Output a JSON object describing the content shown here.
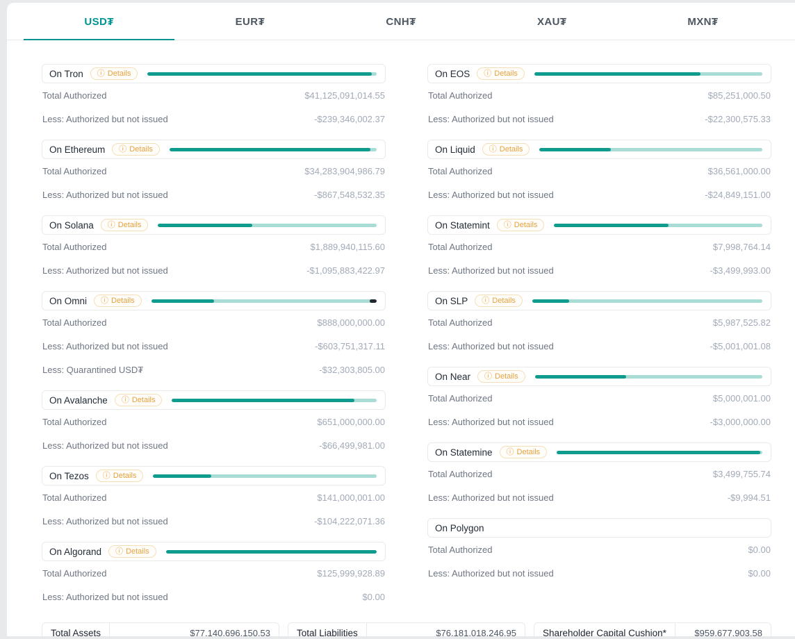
{
  "ui": {
    "details_label": "Details",
    "info_icon": "ⓘ"
  },
  "colors": {
    "accent_teal": "#009393",
    "bar_fill": "#0f9b8e",
    "bar_track": "#a9dcd5",
    "bar_quarantine": "#23272f",
    "details_badge": "#e5a13d"
  },
  "tabs": [
    {
      "label": "USD₮",
      "active": true
    },
    {
      "label": "EUR₮",
      "active": false
    },
    {
      "label": "CNH₮",
      "active": false
    },
    {
      "label": "XAU₮",
      "active": false
    },
    {
      "label": "MXN₮",
      "active": false
    }
  ],
  "columns": {
    "left": [
      {
        "name": "On Tron",
        "has_details": true,
        "bar_pct": 98,
        "rows": [
          {
            "label": "Total Authorized",
            "value": "$41,125,091,014.55"
          },
          {
            "label": "Less: Authorized but not issued",
            "value": "-$239,346,002.37"
          }
        ]
      },
      {
        "name": "On Ethereum",
        "has_details": true,
        "bar_pct": 97,
        "rows": [
          {
            "label": "Total Authorized",
            "value": "$34,283,904,986.79"
          },
          {
            "label": "Less: Authorized but not issued",
            "value": "-$867,548,532.35"
          }
        ]
      },
      {
        "name": "On Solana",
        "has_details": true,
        "bar_pct": 43,
        "rows": [
          {
            "label": "Total Authorized",
            "value": "$1,889,940,115.60"
          },
          {
            "label": "Less: Authorized but not issued",
            "value": "-$1,095,883,422.97"
          }
        ]
      },
      {
        "name": "On Omni",
        "has_details": true,
        "bar_pct": 28,
        "quarantine_pct": 3,
        "rows": [
          {
            "label": "Total Authorized",
            "value": "$888,000,000.00"
          },
          {
            "label": "Less: Authorized but not issued",
            "value": "-$603,751,317.11"
          },
          {
            "label": "Less: Quarantined USD₮",
            "value": "-$32,303,805.00"
          }
        ]
      },
      {
        "name": "On Avalanche",
        "has_details": true,
        "bar_pct": 89,
        "rows": [
          {
            "label": "Total Authorized",
            "value": "$651,000,000.00"
          },
          {
            "label": "Less: Authorized but not issued",
            "value": "-$66,499,981.00"
          }
        ]
      },
      {
        "name": "On Tezos",
        "has_details": true,
        "bar_pct": 26,
        "rows": [
          {
            "label": "Total Authorized",
            "value": "$141,000,001.00"
          },
          {
            "label": "Less: Authorized but not issued",
            "value": "-$104,222,071.36"
          }
        ]
      },
      {
        "name": "On Algorand",
        "has_details": true,
        "bar_pct": 100,
        "rows": [
          {
            "label": "Total Authorized",
            "value": "$125,999,928.89"
          },
          {
            "label": "Less: Authorized but not issued",
            "value": "$0.00"
          }
        ]
      }
    ],
    "right": [
      {
        "name": "On EOS",
        "has_details": true,
        "bar_pct": 73,
        "rows": [
          {
            "label": "Total Authorized",
            "value": "$85,251,000.50"
          },
          {
            "label": "Less: Authorized but not issued",
            "value": "-$22,300,575.33"
          }
        ]
      },
      {
        "name": "On Liquid",
        "has_details": true,
        "bar_pct": 32,
        "rows": [
          {
            "label": "Total Authorized",
            "value": "$36,561,000.00"
          },
          {
            "label": "Less: Authorized but not issued",
            "value": "-$24,849,151.00"
          }
        ]
      },
      {
        "name": "On Statemint",
        "has_details": true,
        "bar_pct": 55,
        "rows": [
          {
            "label": "Total Authorized",
            "value": "$7,998,764.14"
          },
          {
            "label": "Less: Authorized but not issued",
            "value": "-$3,499,993.00"
          }
        ]
      },
      {
        "name": "On SLP",
        "has_details": true,
        "bar_pct": 16,
        "rows": [
          {
            "label": "Total Authorized",
            "value": "$5,987,525.82"
          },
          {
            "label": "Less: Authorized but not issued",
            "value": "-$5,001,001.08"
          }
        ]
      },
      {
        "name": "On Near",
        "has_details": true,
        "bar_pct": 40,
        "rows": [
          {
            "label": "Total Authorized",
            "value": "$5,000,001.00"
          },
          {
            "label": "Less: Authorized but not issued",
            "value": "-$3,000,000.00"
          }
        ]
      },
      {
        "name": "On Statemine",
        "has_details": true,
        "bar_pct": 99,
        "rows": [
          {
            "label": "Total Authorized",
            "value": "$3,499,755.74"
          },
          {
            "label": "Less: Authorized but not issued",
            "value": "-$9,994.51"
          }
        ]
      },
      {
        "name": "On Polygon",
        "has_details": false,
        "rows": [
          {
            "label": "Total Authorized",
            "value": "$0.00"
          },
          {
            "label": "Less: Authorized but not issued",
            "value": "$0.00"
          }
        ]
      }
    ]
  },
  "summary": [
    {
      "label": "Total Assets",
      "value": "$77,140,696,150.53"
    },
    {
      "label": "Total Liabilities",
      "value": "$76,181,018,246.95"
    },
    {
      "label": "Shareholder Capital Cushion*",
      "value": "$959,677,903.58"
    }
  ]
}
